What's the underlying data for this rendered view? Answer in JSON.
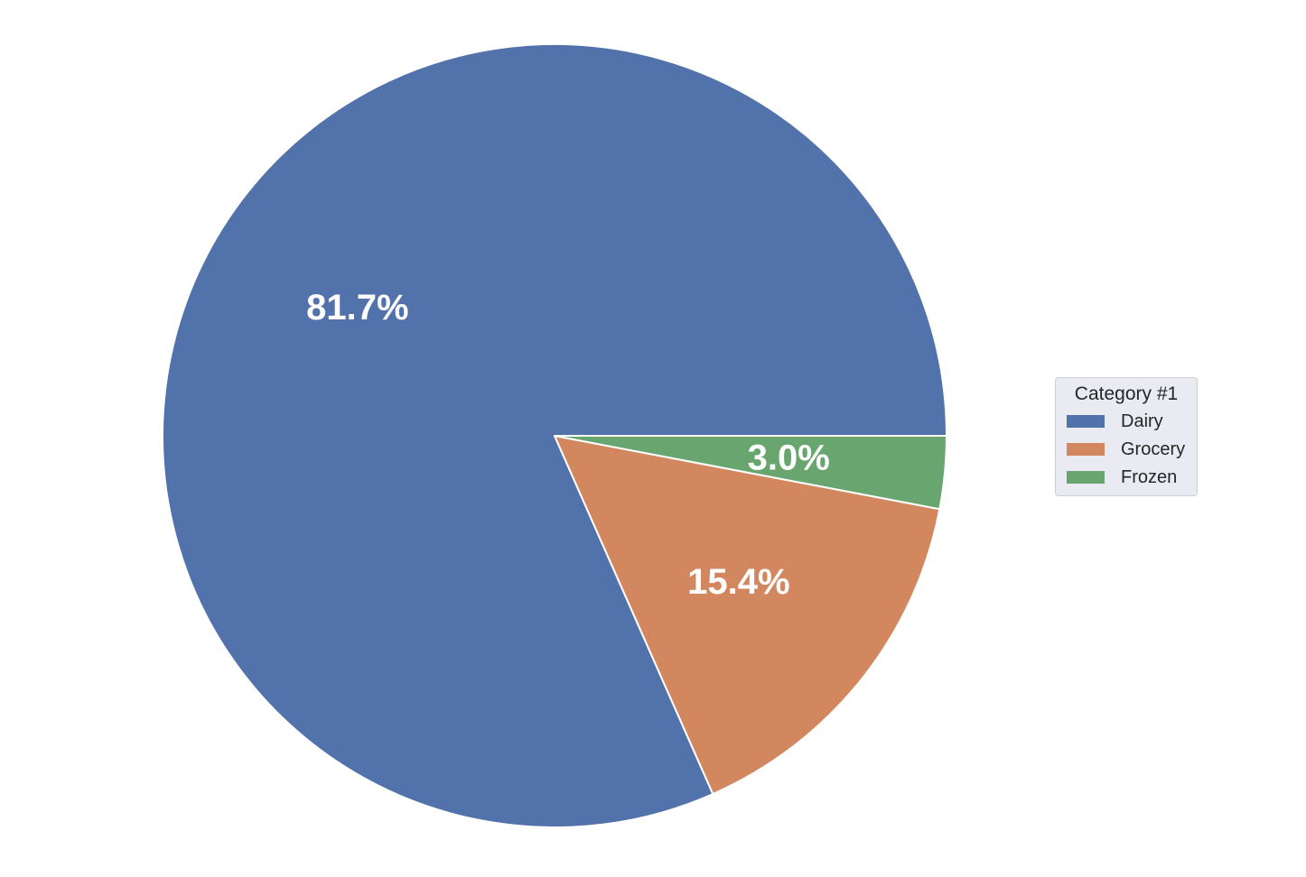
{
  "chart_data": {
    "type": "pie",
    "legend_title": "Category #1",
    "legend_position": "right",
    "slices": [
      {
        "label": "Dairy",
        "value": 81.7,
        "pct_label": "81.7%",
        "color": "#5172ab"
      },
      {
        "label": "Grocery",
        "value": 15.4,
        "pct_label": "15.4%",
        "color": "#d3875e"
      },
      {
        "label": "Frozen",
        "value": 3.0,
        "pct_label": "3.0%",
        "color": "#69a56f"
      }
    ]
  }
}
